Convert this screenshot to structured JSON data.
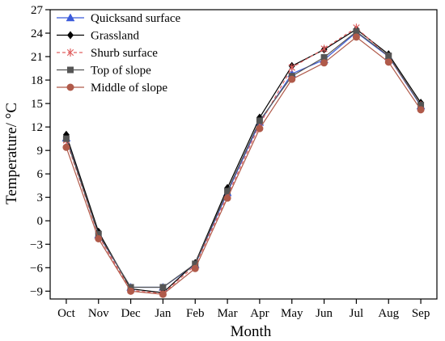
{
  "chart_data": {
    "type": "line",
    "categories": [
      "Oct",
      "Nov",
      "Dec",
      "Jan",
      "Feb",
      "Mar",
      "Apr",
      "May",
      "Jun",
      "Jul",
      "Aug",
      "Sep"
    ],
    "xlabel": "Month",
    "ylabel": "Temperature/ °C",
    "ylim": [
      -10,
      27
    ],
    "yticks": [
      -9,
      -6,
      -3,
      0,
      3,
      6,
      9,
      12,
      15,
      18,
      21,
      24,
      27
    ],
    "grid": false,
    "legend_position": "top-left",
    "series": [
      {
        "name": "Quicksand surface",
        "color": "#3b5bdb",
        "marker": "triangle",
        "dash": "solid",
        "values": [
          10.6,
          -1.8,
          -8.5,
          -8.5,
          -5.6,
          3.6,
          12.6,
          18.8,
          20.6,
          24.1,
          21.0,
          14.7
        ]
      },
      {
        "name": "Grassland",
        "color": "#000000",
        "marker": "diamond",
        "dash": "solid",
        "values": [
          11.0,
          -1.4,
          -8.7,
          -9.2,
          -5.4,
          4.2,
          13.2,
          19.8,
          21.9,
          24.5,
          21.3,
          15.1
        ]
      },
      {
        "name": "Shurb surface",
        "color": "#e06060",
        "marker": "star",
        "dash": "dashed",
        "values": [
          10.3,
          -1.9,
          -8.9,
          -9.3,
          -5.7,
          3.2,
          12.3,
          19.6,
          22.0,
          24.7,
          21.0,
          14.8
        ]
      },
      {
        "name": "Top of slope",
        "color": "#555555",
        "marker": "square",
        "dash": "solid",
        "values": [
          10.5,
          -1.7,
          -8.5,
          -8.5,
          -5.5,
          3.8,
          12.8,
          18.5,
          20.9,
          24.2,
          21.1,
          14.8
        ]
      },
      {
        "name": "Middle of slope",
        "color": "#b05a4a",
        "marker": "circle",
        "dash": "solid",
        "values": [
          9.4,
          -2.3,
          -9.0,
          -9.4,
          -6.1,
          2.9,
          11.8,
          18.1,
          20.2,
          23.5,
          20.3,
          14.2
        ]
      }
    ]
  }
}
